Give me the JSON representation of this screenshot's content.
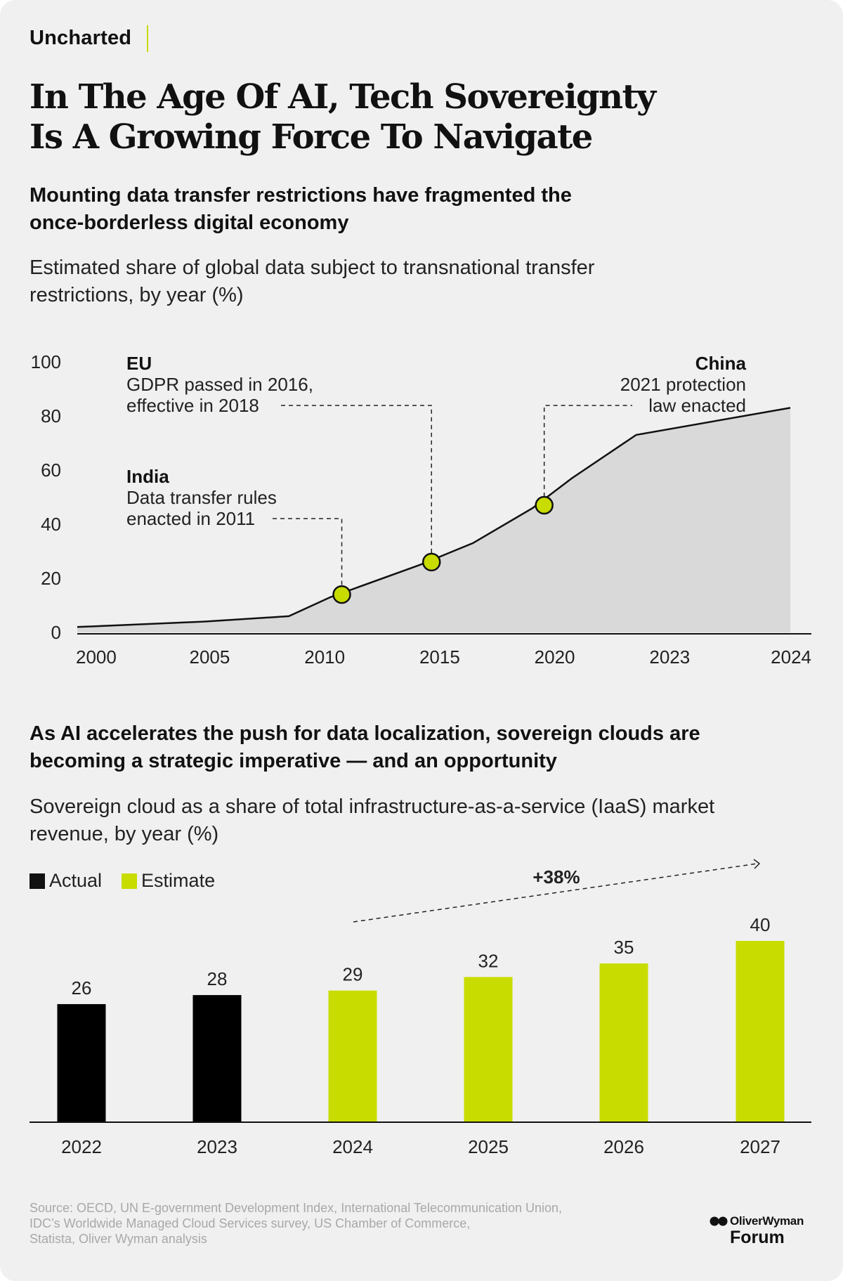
{
  "brand": "Uncharted",
  "title_line1": "In The Age Of AI, Tech Sovereignty",
  "title_line2": "Is A Growing Force To Navigate",
  "section1": {
    "headline_line1": "Mounting data transfer restrictions have fragmented the",
    "headline_line2": "once-borderless digital economy",
    "subtitle_line1": "Estimated share of global data subject to transnational transfer",
    "subtitle_line2": "restrictions, by year (%)"
  },
  "section2": {
    "headline_line1": "As AI accelerates the push for data localization, sovereign clouds are",
    "headline_line2": "becoming a strategic imperative — and an opportunity",
    "subtitle_line1": "Sovereign cloud as a share of total infrastructure-as-a-service (IaaS) market",
    "subtitle_line2": "revenue, by year (%)",
    "legend_actual": "Actual",
    "legend_estimate": "Estimate"
  },
  "source_line1": "Source: OECD, UN E-government Development Index, International Telecommunication Union,",
  "source_line2": "IDC’s Worldwide Managed Cloud Services survey, US Chamber of Commerce,",
  "source_line3": "Statista, Oliver Wyman analysis",
  "logo_top": "OliverWyman",
  "logo_bottom": "Forum",
  "colors": {
    "background": "#f0f0f0",
    "area_fill": "#d9d9d9",
    "actual": "#000000",
    "estimate": "#c8dc00",
    "marker": "#c8dc00"
  },
  "chart_data": [
    {
      "type": "area",
      "title": "Estimated share of global data subject to transnational transfer restrictions, by year (%)",
      "x": [
        0,
        5.5,
        9.2,
        11,
        14.9,
        17.2,
        19.8,
        21.5,
        24.3,
        31
      ],
      "y": [
        2,
        4,
        6,
        13,
        25,
        33,
        46,
        57,
        73,
        83
      ],
      "x_tick_labels": [
        "2000",
        "2005",
        "2010",
        "2015",
        "2020",
        "2023",
        "2024"
      ],
      "x_tick_positions": [
        1,
        6,
        11,
        16,
        21,
        26,
        31
      ],
      "y_ticks": [
        0,
        20,
        40,
        60,
        80,
        100
      ],
      "ylim": [
        0,
        100
      ],
      "xlim": [
        0,
        31
      ],
      "annotations": [
        {
          "id": "india",
          "title": "India",
          "lines": [
            "Data transfer rules",
            "enacted in 2011"
          ],
          "x": 11.5,
          "y": 14
        },
        {
          "id": "eu",
          "title": "EU",
          "lines": [
            "GDPR passed in 2016,",
            "effective in 2018"
          ],
          "x": 15.4,
          "y": 26
        },
        {
          "id": "china",
          "title": "China",
          "lines": [
            "2021 protection",
            "law enacted"
          ],
          "x": 20.3,
          "y": 47
        }
      ]
    },
    {
      "type": "bar",
      "title": "Sovereign cloud as a share of total infrastructure-as-a-service (IaaS) market revenue, by year (%)",
      "categories": [
        "2022",
        "2023",
        "2024",
        "2025",
        "2026",
        "2027"
      ],
      "values": [
        26,
        28,
        29,
        32,
        35,
        40
      ],
      "status": [
        "Actual",
        "Actual",
        "Estimate",
        "Estimate",
        "Estimate",
        "Estimate"
      ],
      "growth_label": "+38%",
      "ylim": [
        0,
        40
      ]
    }
  ]
}
